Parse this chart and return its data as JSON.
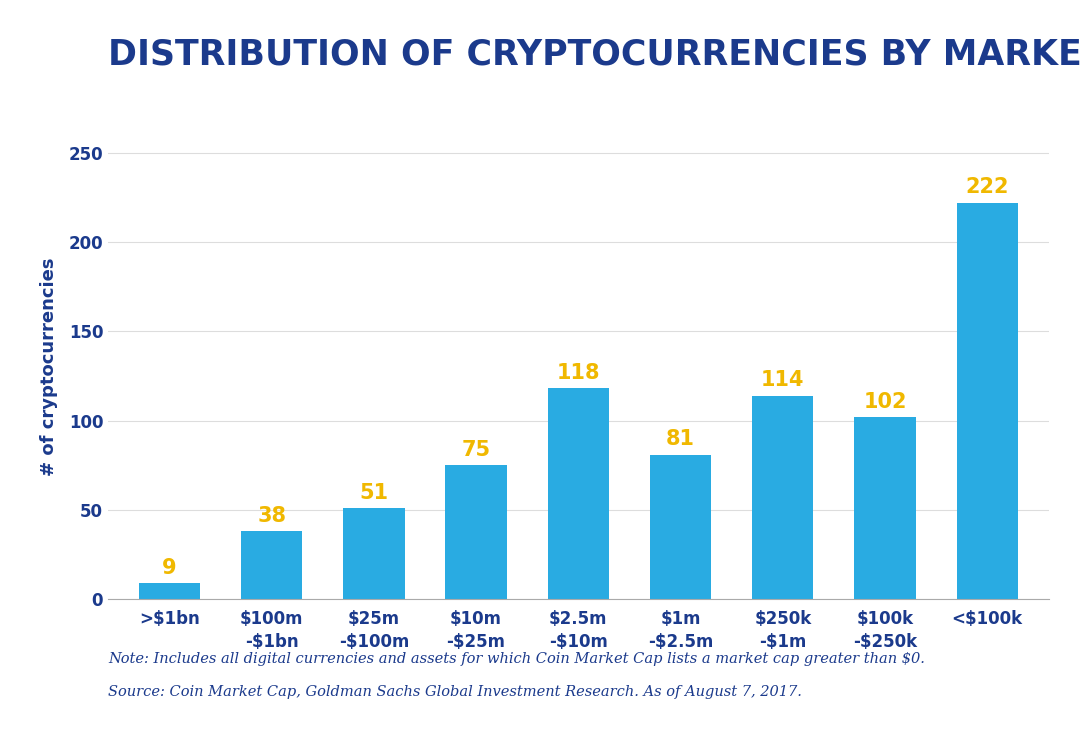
{
  "title": "DISTRIBUTION OF CRYPTOCURRENCIES BY MARKET CAP",
  "categories": [
    ">$1bn",
    "$100m\n-$1bn",
    "$25m\n-$100m",
    "$10m\n-$25m",
    "$2.5m\n-$10m",
    "$1m\n-$2.5m",
    "$250k\n-$1m",
    "$100k\n-$250k",
    "<$100k"
  ],
  "values": [
    9,
    38,
    51,
    75,
    118,
    81,
    114,
    102,
    222
  ],
  "bar_color": "#29abe2",
  "label_color": "#f0b800",
  "title_color": "#1b3a8c",
  "tick_color": "#1b3a8c",
  "ylabel": "# of cryptocurrencies",
  "ylim": [
    0,
    260
  ],
  "yticks": [
    0,
    50,
    100,
    150,
    200,
    250
  ],
  "note_line1": "Note: Includes all digital currencies and assets for which Coin Market Cap lists a market cap greater than $0.",
  "note_line2": "Source: Coin Market Cap, Goldman Sachs Global Investment Research. As of August 7, 2017.",
  "background_color": "#ffffff",
  "title_fontsize": 25,
  "label_fontsize": 15,
  "tick_fontsize": 12,
  "ylabel_fontsize": 13,
  "note_fontsize": 10.5,
  "bar_width": 0.6
}
